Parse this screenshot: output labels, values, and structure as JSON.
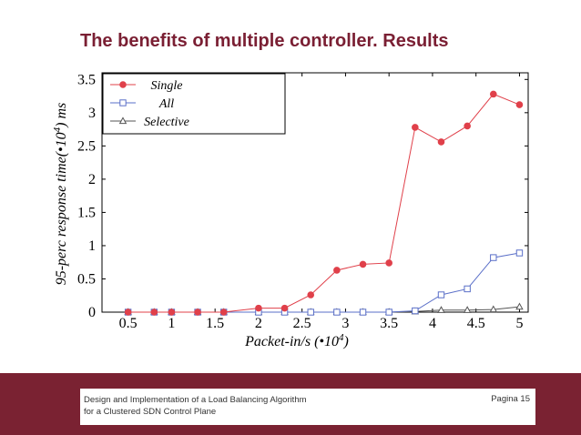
{
  "slide": {
    "title": "The benefits of multiple controller. Results"
  },
  "footer": {
    "line1": "Design and Implementation of a Load Balancing Algorithm",
    "line2": "for a Clustered SDN Control Plane",
    "page": "Pagina 15"
  },
  "colors": {
    "accent": "#7a2232",
    "single": "#e0404a",
    "all": "#5a6fc8",
    "selective": "#555555"
  },
  "chart_data": {
    "type": "line",
    "x": [
      0.5,
      0.8,
      1.0,
      1.3,
      1.6,
      2.0,
      2.3,
      2.6,
      2.9,
      3.2,
      3.5,
      3.8,
      4.1,
      4.4,
      4.7,
      5.0
    ],
    "xlim": [
      0.2,
      5.1
    ],
    "ylim": [
      0,
      3.6
    ],
    "xticks": [
      "0.5",
      "1",
      "1.5",
      "2",
      "2.5",
      "3",
      "3.5",
      "4",
      "4.5",
      "5"
    ],
    "xtick_values": [
      0.5,
      1,
      1.5,
      2,
      2.5,
      3,
      3.5,
      4,
      4.5,
      5
    ],
    "yticks": [
      "0",
      "0.5",
      "1",
      "1.5",
      "2",
      "2.5",
      "3",
      "3.5"
    ],
    "ytick_values": [
      0,
      0.5,
      1,
      1.5,
      2,
      2.5,
      3,
      3.5
    ],
    "xlabel_main": "Packet-in/s (•10",
    "xlabel_exp": "4",
    "xlabel_end": ")",
    "ylabel_main": "95-perc response time(•10",
    "ylabel_exp": "4",
    "ylabel_end": ") ms",
    "grid": false,
    "legend_position": "top-left",
    "series": [
      {
        "name": "Single",
        "marker": "filled-circle",
        "values": [
          0,
          0,
          0,
          0,
          0,
          0.06,
          0.06,
          0.26,
          0.63,
          0.72,
          0.74,
          2.78,
          2.56,
          2.8,
          3.28,
          3.12
        ]
      },
      {
        "name": "All",
        "marker": "open-square",
        "values": [
          0,
          0,
          0,
          0,
          0,
          0,
          0,
          0,
          0,
          0,
          0,
          0.02,
          0.26,
          0.35,
          0.82,
          0.89
        ]
      },
      {
        "name": "Selective",
        "marker": "open-triangle",
        "values": [
          0,
          0,
          0,
          0,
          0,
          0,
          0,
          0,
          0,
          0,
          0,
          0.01,
          0.03,
          0.03,
          0.04,
          0.08
        ]
      }
    ]
  }
}
